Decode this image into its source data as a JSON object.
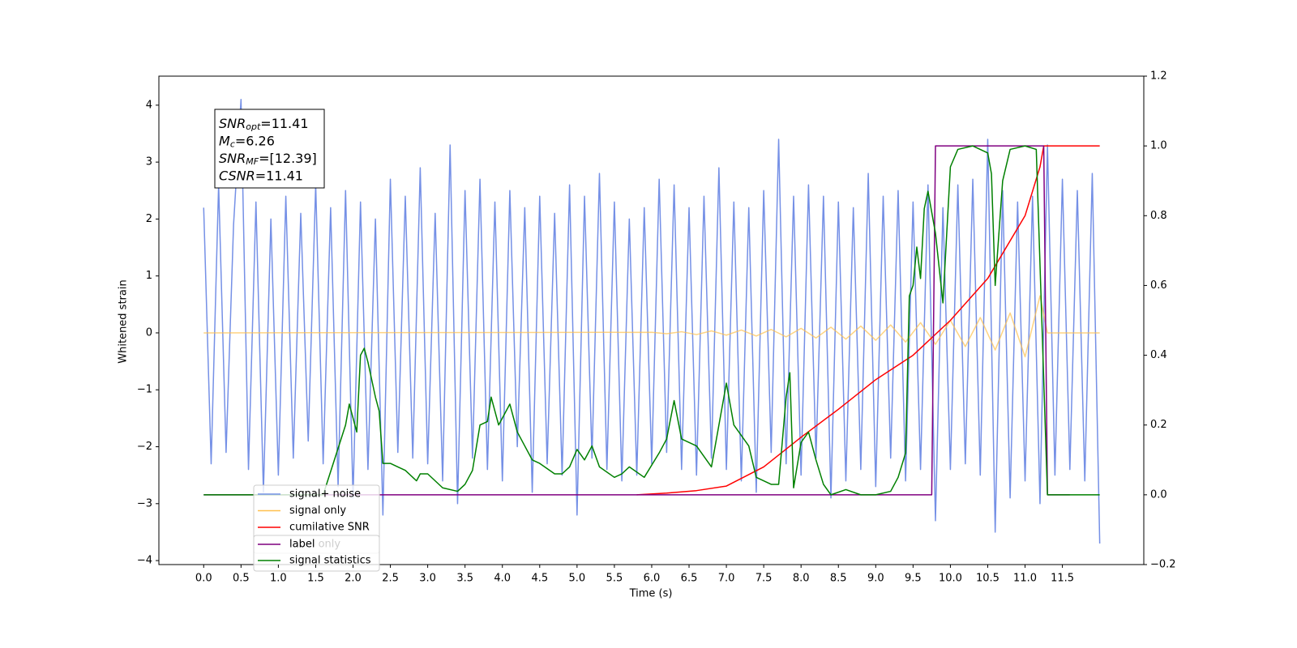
{
  "chart_data": {
    "type": "line",
    "x_label": "Time (s)",
    "y_label": "Whitened strain",
    "xlim": [
      -0.6,
      12.59
    ],
    "ylim": [
      -4.07,
      4.51
    ],
    "y2lim": [
      -0.2,
      1.2
    ],
    "xticks": [
      {
        "value": 0,
        "label": "0.0"
      },
      0.5,
      {
        "value": 1,
        "label": "1.0"
      },
      1.5,
      {
        "value": 2,
        "label": "2.0"
      },
      2.5,
      {
        "value": 3,
        "label": "3.0"
      },
      3.5,
      {
        "value": 4,
        "label": "4.0"
      },
      4.5,
      {
        "value": 5,
        "label": "5.0"
      },
      5.5,
      {
        "value": 6,
        "label": "6.0"
      },
      6.5,
      {
        "value": 7,
        "label": "7.0"
      },
      7.5,
      {
        "value": 8,
        "label": "8.0"
      },
      8.5,
      {
        "value": 9,
        "label": "9.0"
      },
      9.5,
      {
        "value": 10,
        "label": "10.0"
      },
      10.5,
      {
        "value": 11,
        "label": "11.0"
      },
      11.5
    ],
    "yticks": [
      {
        "value": -4,
        "label": "−4"
      },
      {
        "value": -3,
        "label": "−3"
      },
      {
        "value": -2,
        "label": "−2"
      },
      {
        "value": -1,
        "label": "−1"
      },
      0,
      1,
      2,
      3,
      4
    ],
    "y2ticks": [
      {
        "value": -0.2,
        "label": "−0.2"
      },
      {
        "value": 0,
        "label": "0.0"
      },
      0.2,
      0.4,
      0.6,
      0.8,
      {
        "value": 1,
        "label": "1.0"
      },
      1.2
    ],
    "annotation": [
      {
        "symbol": "SNR",
        "sub": "opt",
        "text": "=11.41"
      },
      {
        "symbol": "M",
        "sub": "c",
        "text": "=6.26"
      },
      {
        "symbol": "SNR",
        "sub": "MF",
        "text": "=[12.39]"
      },
      {
        "symbol": "CSNR",
        "text": "=11.41"
      }
    ],
    "series": [
      {
        "name": "signal+ noise",
        "color": "#7590e6",
        "x": [
          0,
          0.1,
          0.2,
          0.3,
          0.4,
          0.5,
          0.6,
          0.7,
          0.8,
          0.9,
          1,
          1.1,
          1.2,
          1.3,
          1.4,
          1.5,
          1.6,
          1.7,
          1.8,
          1.9,
          2,
          2.1,
          2.2,
          2.3,
          2.4,
          2.5,
          2.6,
          2.7,
          2.8,
          2.9,
          3,
          3.1,
          3.2,
          3.3,
          3.4,
          3.5,
          3.6,
          3.7,
          3.8,
          3.9,
          4,
          4.1,
          4.2,
          4.3,
          4.4,
          4.5,
          4.6,
          4.7,
          4.8,
          4.9,
          5,
          5.1,
          5.2,
          5.3,
          5.4,
          5.5,
          5.6,
          5.7,
          5.8,
          5.9,
          6,
          6.1,
          6.2,
          6.3,
          6.4,
          6.5,
          6.6,
          6.7,
          6.8,
          6.9,
          7,
          7.1,
          7.2,
          7.3,
          7.4,
          7.5,
          7.6,
          7.7,
          7.8,
          7.9,
          8,
          8.1,
          8.2,
          8.3,
          8.4,
          8.5,
          8.6,
          8.7,
          8.8,
          8.9,
          9,
          9.1,
          9.2,
          9.3,
          9.4,
          9.5,
          9.6,
          9.7,
          9.8,
          9.9,
          10,
          10.1,
          10.2,
          10.3,
          10.4,
          10.5,
          10.6,
          10.7,
          10.8,
          10.9,
          11,
          11.1,
          11.2,
          11.3,
          11.4,
          11.5,
          11.6,
          11.7,
          11.8,
          11.9,
          12
        ],
        "values": [
          2.2,
          -2.3,
          2.6,
          -2.1,
          1.9,
          4.1,
          -2.4,
          2.3,
          -2.8,
          2.0,
          -2.5,
          2.4,
          -2.2,
          2.1,
          -1.9,
          2.6,
          -2.3,
          2.2,
          -2.7,
          2.5,
          -2.9,
          2.3,
          -2.4,
          2.0,
          -3.2,
          2.7,
          -2.1,
          2.4,
          -2.2,
          2.9,
          -2.3,
          2.1,
          -2.6,
          3.3,
          -3.0,
          2.5,
          -2.2,
          2.7,
          -2.4,
          2.3,
          -2.6,
          2.5,
          -2.0,
          2.2,
          -2.8,
          2.4,
          -2.3,
          2.1,
          -2.5,
          2.6,
          -3.2,
          2.4,
          -2.2,
          2.8,
          -2.4,
          2.3,
          -2.6,
          2.0,
          -2.5,
          2.2,
          -2.3,
          2.7,
          -2.1,
          2.6,
          -2.4,
          2.2,
          -2.5,
          2.4,
          -2.2,
          2.9,
          -2.4,
          2.3,
          -2.6,
          2.2,
          -2.8,
          2.5,
          -2.1,
          3.4,
          -2.3,
          2.4,
          -2.5,
          2.6,
          -2.2,
          2.4,
          -2.9,
          2.3,
          -2.6,
          2.2,
          -2.4,
          2.8,
          -2.7,
          2.4,
          -2.2,
          2.5,
          -2.6,
          2.3,
          -2.4,
          2.6,
          -3.3,
          2.2,
          -2.4,
          2.6,
          -2.3,
          2.7,
          -2.5,
          3.4,
          -3.5,
          2.5,
          -2.9,
          2.3,
          -2.6,
          2.4,
          -3.0,
          3.3,
          -2.5,
          2.7,
          -2.4,
          2.5,
          -2.6,
          2.8,
          -3.7
        ]
      },
      {
        "name": "signal only",
        "color": "#ffc04d",
        "x": [
          0,
          6,
          6.2,
          6.4,
          6.6,
          6.8,
          7,
          7.2,
          7.4,
          7.6,
          7.8,
          8,
          8.2,
          8.4,
          8.6,
          8.8,
          9,
          9.2,
          9.4,
          9.6,
          9.8,
          10,
          10.2,
          10.4,
          10.6,
          10.8,
          11,
          11.2,
          11.3,
          12
        ],
        "values": [
          0,
          0.01,
          -0.015,
          0.02,
          -0.03,
          0.035,
          -0.04,
          0.05,
          -0.055,
          0.06,
          -0.07,
          0.08,
          -0.09,
          0.1,
          -0.11,
          0.12,
          -0.13,
          0.14,
          -0.16,
          0.18,
          -0.2,
          0.22,
          -0.24,
          0.27,
          -0.3,
          0.35,
          -0.42,
          0.65,
          0,
          0
        ]
      },
      {
        "name": "cumilative SNR",
        "color": "#ff0000",
        "axis": "y2",
        "x": [
          5.8,
          6.2,
          6.6,
          7,
          7.5,
          8,
          8.5,
          9,
          9.5,
          10,
          10.5,
          11,
          11.2,
          11.25,
          12
        ],
        "values": [
          0,
          0.005,
          0.012,
          0.025,
          0.08,
          0.165,
          0.245,
          0.33,
          0.4,
          0.5,
          0.62,
          0.8,
          0.94,
          1,
          1
        ]
      },
      {
        "name": "label",
        "color": "#800080",
        "axis": "y2",
        "x": [
          0,
          9.75,
          9.8,
          11.25,
          11.3,
          11.6
        ],
        "values": [
          0,
          0,
          1,
          1,
          0,
          0
        ]
      },
      {
        "name": "signal statistics",
        "color": "#008000",
        "axis": "y2",
        "x": [
          0,
          1.6,
          1.9,
          1.95,
          2.05,
          2.1,
          2.15,
          2.2,
          2.3,
          2.35,
          2.4,
          2.5,
          2.6,
          2.7,
          2.85,
          2.9,
          3,
          3.1,
          3.2,
          3.4,
          3.5,
          3.6,
          3.7,
          3.8,
          3.85,
          3.95,
          4.05,
          4.1,
          4.2,
          4.3,
          4.4,
          4.5,
          4.7,
          4.8,
          4.9,
          5,
          5.1,
          5.2,
          5.3,
          5.5,
          5.6,
          5.7,
          5.9,
          6.1,
          6.2,
          6.3,
          6.4,
          6.6,
          6.8,
          6.9,
          7,
          7.1,
          7.3,
          7.4,
          7.6,
          7.7,
          7.8,
          7.85,
          7.9,
          8,
          8.1,
          8.2,
          8.3,
          8.4,
          8.6,
          8.8,
          9,
          9.2,
          9.3,
          9.4,
          9.45,
          9.5,
          9.55,
          9.6,
          9.65,
          9.7,
          9.8,
          9.9,
          10,
          10.1,
          10.3,
          10.5,
          10.55,
          10.6,
          10.7,
          10.8,
          11,
          11.15,
          11.3,
          12
        ],
        "values": [
          0,
          0,
          0.2,
          0.26,
          0.18,
          0.4,
          0.42,
          0.38,
          0.28,
          0.24,
          0.09,
          0.09,
          0.08,
          0.07,
          0.04,
          0.06,
          0.06,
          0.04,
          0.02,
          0.01,
          0.03,
          0.07,
          0.2,
          0.21,
          0.28,
          0.2,
          0.24,
          0.26,
          0.18,
          0.14,
          0.1,
          0.09,
          0.06,
          0.06,
          0.08,
          0.13,
          0.1,
          0.14,
          0.08,
          0.05,
          0.06,
          0.08,
          0.05,
          0.12,
          0.16,
          0.27,
          0.16,
          0.14,
          0.08,
          0.2,
          0.32,
          0.2,
          0.14,
          0.05,
          0.03,
          0.03,
          0.28,
          0.35,
          0.02,
          0.15,
          0.18,
          0.1,
          0.03,
          0,
          0.015,
          0,
          0,
          0.01,
          0.05,
          0.12,
          0.57,
          0.6,
          0.71,
          0.62,
          0.82,
          0.87,
          0.75,
          0.55,
          0.94,
          0.99,
          1,
          0.98,
          0.92,
          0.6,
          0.9,
          0.99,
          1,
          0.99,
          0,
          0
        ]
      }
    ],
    "extra_legend_entry": {
      "name": "label only",
      "color": "#d8a8d8"
    }
  }
}
